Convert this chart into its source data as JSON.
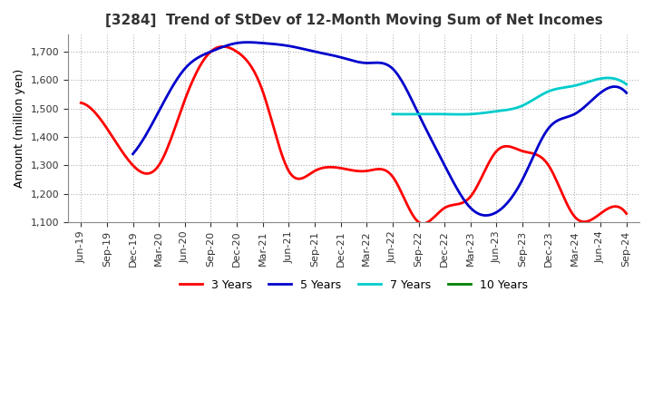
{
  "title": "[3284]  Trend of StDev of 12-Month Moving Sum of Net Incomes",
  "ylabel": "Amount (million yen)",
  "ylim": [
    1100,
    1760
  ],
  "yticks": [
    1100,
    1200,
    1300,
    1400,
    1500,
    1600,
    1700
  ],
  "background_color": "#ffffff",
  "grid_color": "#aaaaaa",
  "series": {
    "3 Years": {
      "color": "#ff0000",
      "x": [
        0,
        1,
        2,
        3,
        4,
        5,
        6,
        7,
        8,
        9,
        10,
        11,
        12,
        13,
        14,
        15,
        16,
        17,
        18,
        19,
        20,
        21
      ],
      "values": [
        1520,
        1430,
        1300,
        1300,
        1530,
        1700,
        1700,
        1560,
        1280,
        1280,
        1290,
        1280,
        1260,
        1100,
        1150,
        1190,
        1350,
        1350,
        1300,
        1120,
        1130,
        1130
      ]
    },
    "5 Years": {
      "color": "#0000cc",
      "x": [
        2,
        3,
        4,
        5,
        6,
        7,
        8,
        9,
        10,
        11,
        12,
        13,
        14,
        15,
        16,
        17,
        18,
        19,
        20,
        21
      ],
      "values": [
        1340,
        1490,
        1640,
        1700,
        1730,
        1730,
        1720,
        1700,
        1680,
        1660,
        1640,
        1480,
        1300,
        1150,
        1135,
        1250,
        1430,
        1480,
        1555,
        1555
      ]
    },
    "7 Years": {
      "color": "#00cccc",
      "x": [
        12,
        13,
        14,
        15,
        16,
        17,
        18,
        19,
        20,
        21
      ],
      "values": [
        1480,
        1480,
        1480,
        1480,
        1490,
        1510,
        1560,
        1580,
        1605,
        1585
      ]
    },
    "10 Years": {
      "color": "#008000",
      "x": [],
      "values": []
    }
  },
  "legend_labels": [
    "3 Years",
    "5 Years",
    "7 Years",
    "10 Years"
  ],
  "legend_colors": [
    "#ff0000",
    "#0000cc",
    "#00cccc",
    "#008000"
  ],
  "dates": [
    "Jun-19",
    "Sep-19",
    "Dec-19",
    "Mar-20",
    "Jun-20",
    "Sep-20",
    "Dec-20",
    "Mar-21",
    "Jun-21",
    "Sep-21",
    "Dec-21",
    "Mar-22",
    "Jun-22",
    "Sep-22",
    "Dec-22",
    "Mar-23",
    "Jun-23",
    "Sep-23",
    "Dec-23",
    "Mar-24",
    "Jun-24",
    "Sep-24"
  ]
}
